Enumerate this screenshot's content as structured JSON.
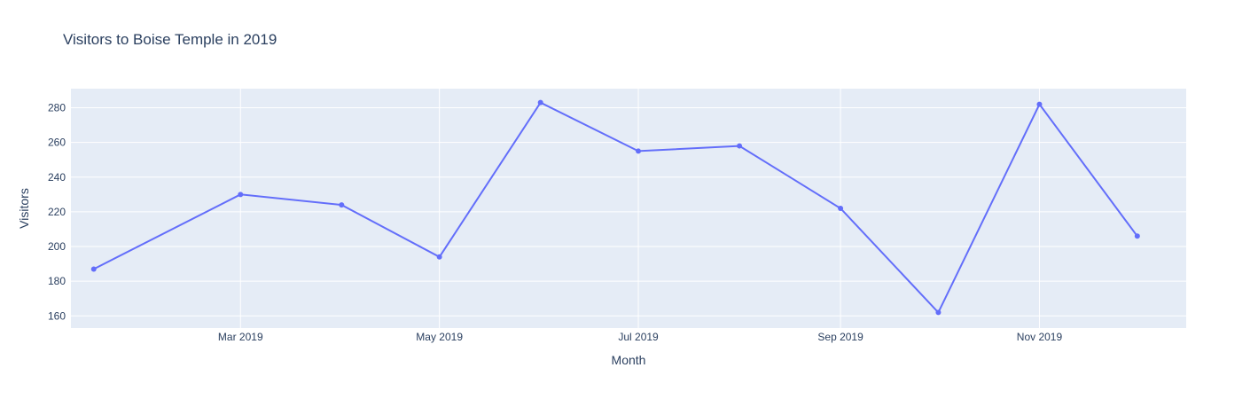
{
  "chart_data": {
    "type": "line",
    "title": "Visitors to Boise Temple in 2019",
    "xlabel": "Month",
    "ylabel": "Visitors",
    "x": [
      "2019-01-15",
      "2019-03-01",
      "2019-04-01",
      "2019-05-01",
      "2019-06-01",
      "2019-07-01",
      "2019-08-01",
      "2019-09-01",
      "2019-10-01",
      "2019-11-01",
      "2019-12-01"
    ],
    "values": [
      187,
      230,
      224,
      194,
      283,
      255,
      258,
      222,
      162,
      282,
      206
    ],
    "xlim": [
      "2019-01-08",
      "2019-12-16"
    ],
    "ylim": [
      153,
      291
    ],
    "y_ticks": [
      160,
      180,
      200,
      220,
      240,
      260,
      280
    ],
    "x_ticks": [
      {
        "date": "2019-03-01",
        "label": "Mar 2019"
      },
      {
        "date": "2019-05-01",
        "label": "May 2019"
      },
      {
        "date": "2019-07-01",
        "label": "Jul 2019"
      },
      {
        "date": "2019-09-01",
        "label": "Sep 2019"
      },
      {
        "date": "2019-11-01",
        "label": "Nov 2019"
      }
    ],
    "grid": true,
    "colors": {
      "line": "#636efa",
      "plot_bg": "#e5ecf6",
      "grid": "#ffffff",
      "text": "#2a3f5f"
    }
  }
}
